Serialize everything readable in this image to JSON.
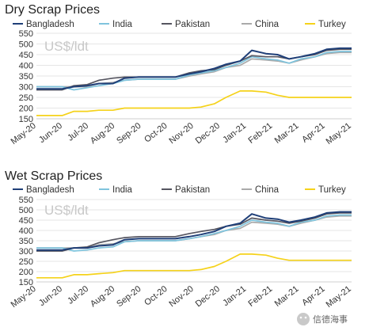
{
  "watermark": {
    "text": "信德海事"
  },
  "chart_data": [
    {
      "type": "line",
      "title": "Dry Scrap Prices",
      "unit": "US$/ldt",
      "ylim": [
        150,
        550
      ],
      "yticks": [
        150,
        200,
        250,
        300,
        350,
        400,
        450,
        500,
        550
      ],
      "grid": true,
      "legend": "top",
      "x_ticks": [
        "May-20",
        "Jun-20",
        "Jul-20",
        "Aug-20",
        "Sep-20",
        "Oct-20",
        "Nov-20",
        "Dec-20",
        "Jan-21",
        "Feb-21",
        "Mar-21",
        "Apr-21",
        "May-21"
      ],
      "x": [
        "2020-05-01",
        "2020-05-15",
        "2020-06-01",
        "2020-06-15",
        "2020-07-01",
        "2020-07-15",
        "2020-08-01",
        "2020-08-15",
        "2020-09-01",
        "2020-09-15",
        "2020-10-01",
        "2020-10-15",
        "2020-11-01",
        "2020-11-15",
        "2020-12-01",
        "2020-12-15",
        "2021-01-01",
        "2021-01-15",
        "2021-02-01",
        "2021-02-15",
        "2021-03-01",
        "2021-03-15",
        "2021-04-01",
        "2021-04-15",
        "2021-05-01",
        "2021-05-15"
      ],
      "series": [
        {
          "name": "Bangladesh",
          "color": "#1f3f78",
          "values": [
            290,
            290,
            290,
            300,
            305,
            315,
            315,
            340,
            345,
            345,
            345,
            345,
            360,
            370,
            385,
            405,
            420,
            470,
            455,
            450,
            430,
            440,
            455,
            475,
            480,
            480
          ]
        },
        {
          "name": "India",
          "color": "#7fc4dd",
          "values": [
            300,
            300,
            300,
            285,
            295,
            305,
            315,
            330,
            335,
            335,
            335,
            335,
            355,
            365,
            375,
            390,
            410,
            440,
            430,
            425,
            410,
            430,
            440,
            460,
            465,
            465
          ]
        },
        {
          "name": "Pakistan",
          "color": "#555560",
          "values": [
            285,
            285,
            285,
            305,
            310,
            330,
            340,
            345,
            345,
            345,
            345,
            345,
            365,
            375,
            380,
            400,
            420,
            445,
            440,
            440,
            430,
            440,
            450,
            470,
            475,
            475
          ]
        },
        {
          "name": "China",
          "color": "#aaaaaa",
          "values": [
            300,
            300,
            300,
            300,
            300,
            315,
            320,
            330,
            335,
            335,
            335,
            335,
            350,
            360,
            370,
            390,
            400,
            430,
            425,
            420,
            410,
            425,
            440,
            455,
            460,
            460
          ]
        },
        {
          "name": "Turkey",
          "color": "#f5d21a",
          "values": [
            165,
            165,
            165,
            185,
            185,
            190,
            190,
            200,
            200,
            200,
            200,
            200,
            200,
            205,
            220,
            250,
            280,
            280,
            275,
            260,
            250,
            250,
            250,
            250,
            250,
            250
          ]
        }
      ]
    },
    {
      "type": "line",
      "title": "Wet Scrap Prices",
      "unit": "US$/ldt",
      "ylim": [
        150,
        550
      ],
      "yticks": [
        150,
        200,
        250,
        300,
        350,
        400,
        450,
        500,
        550
      ],
      "grid": true,
      "legend": "top",
      "x_ticks": [
        "May-20",
        "Jun-20",
        "Jul-20",
        "Aug-20",
        "Sep-20",
        "Oct-20",
        "Nov-20",
        "Dec-20",
        "Jan-21",
        "Feb-21",
        "Mar-21",
        "Apr-21",
        "May-21"
      ],
      "x": [
        "2020-05-01",
        "2020-05-15",
        "2020-06-01",
        "2020-06-15",
        "2020-07-01",
        "2020-07-15",
        "2020-08-01",
        "2020-08-15",
        "2020-09-01",
        "2020-09-15",
        "2020-10-01",
        "2020-10-15",
        "2020-11-01",
        "2020-11-15",
        "2020-12-01",
        "2020-12-15",
        "2021-01-01",
        "2021-01-15",
        "2021-02-01",
        "2021-02-15",
        "2021-03-01",
        "2021-03-15",
        "2021-04-01",
        "2021-04-15",
        "2021-05-01",
        "2021-05-15"
      ],
      "series": [
        {
          "name": "Bangladesh",
          "color": "#1f3f78",
          "values": [
            305,
            305,
            305,
            315,
            315,
            325,
            330,
            355,
            360,
            360,
            360,
            360,
            370,
            380,
            395,
            420,
            435,
            480,
            460,
            455,
            440,
            450,
            465,
            485,
            490,
            490
          ]
        },
        {
          "name": "India",
          "color": "#7fc4dd",
          "values": [
            315,
            315,
            315,
            300,
            305,
            315,
            320,
            345,
            350,
            350,
            350,
            350,
            360,
            370,
            385,
            400,
            420,
            450,
            440,
            435,
            420,
            440,
            450,
            470,
            475,
            475
          ]
        },
        {
          "name": "Pakistan",
          "color": "#555560",
          "values": [
            300,
            300,
            300,
            315,
            320,
            340,
            355,
            365,
            370,
            370,
            370,
            370,
            385,
            395,
            405,
            420,
            430,
            460,
            450,
            445,
            435,
            445,
            460,
            480,
            485,
            485
          ]
        },
        {
          "name": "China",
          "color": "#aaaaaa",
          "values": [
            315,
            315,
            315,
            315,
            315,
            330,
            335,
            345,
            350,
            350,
            350,
            350,
            360,
            370,
            380,
            400,
            410,
            440,
            435,
            430,
            420,
            435,
            450,
            465,
            470,
            470
          ]
        },
        {
          "name": "Turkey",
          "color": "#f5d21a",
          "values": [
            170,
            170,
            170,
            185,
            185,
            190,
            195,
            205,
            205,
            205,
            205,
            205,
            205,
            210,
            225,
            250,
            285,
            285,
            280,
            265,
            255,
            255,
            255,
            255,
            255,
            255
          ]
        }
      ]
    }
  ]
}
